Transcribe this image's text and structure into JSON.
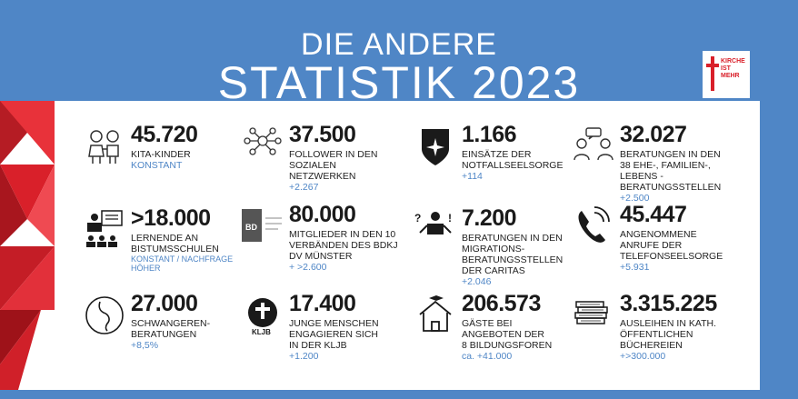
{
  "title": {
    "line1": "DIE ANDERE",
    "line2": "STATISTIK 2023"
  },
  "logo": {
    "line1": "KIRCHE",
    "line2": "IST",
    "line3": "MEHR"
  },
  "colors": {
    "background": "#4f86c6",
    "accent_red": "#d9202a",
    "panel": "#ffffff",
    "highlight": "#4f86c6"
  },
  "stats": [
    {
      "icon": "children-icon",
      "number": "45.720",
      "desc": [
        "KITA-KINDER"
      ],
      "sub": [
        "KONSTANT"
      ]
    },
    {
      "icon": "social-network-icon",
      "number": "37.500",
      "desc": [
        "FOLLOWER IN DEN",
        "SOZIALEN",
        "NETZWERKEN"
      ],
      "sub": [
        "+2.267"
      ]
    },
    {
      "icon": "notfallseelsorge-shield-icon",
      "number": "1.166",
      "desc": [
        "EINSÄTZE DER",
        "NOTFALLSEELSORGE"
      ],
      "sub": [
        "+114"
      ]
    },
    {
      "icon": "counseling-people-icon",
      "number": "32.027",
      "desc": [
        "BERATUNGEN IN DEN",
        "38 EHE-, FAMILIEN-,",
        "LEBENS -",
        "BERATUNGSSTELLEN"
      ],
      "sub": [
        "+2.500"
      ]
    },
    {
      "icon": "classroom-icon",
      "number": ">18.000",
      "desc": [
        "LERNENDE AN",
        "BISTUMSSCHULEN"
      ],
      "sub": [
        "KONSTANT / NACHFRAGE",
        "HÖHER"
      ]
    },
    {
      "icon": "bdkj-logo-icon",
      "number": "80.000",
      "desc": [
        "MITGLIEDER IN DEN 10",
        "VERBÄNDEN DES BDKJ",
        "DV MÜNSTER"
      ],
      "sub": [
        "+ >2.600"
      ]
    },
    {
      "icon": "migration-counseling-icon",
      "number": "7.200",
      "desc": [
        "BERATUNGEN IN DEN",
        "MIGRATIONS-",
        "BERATUNGSSTELLEN",
        "DER CARITAS"
      ],
      "sub": [
        "+2.046"
      ]
    },
    {
      "icon": "telephone-icon",
      "number": "45.447",
      "desc": [
        "ANGENOMMENE",
        "ANRUFE DER",
        "TELEFONSEELSORGE"
      ],
      "sub": [
        "+5.931"
      ]
    },
    {
      "icon": "pregnancy-icon",
      "number": "27.000",
      "desc": [
        "SCHWANGEREN-",
        "BERATUNGEN"
      ],
      "sub": [
        "+8,5%"
      ]
    },
    {
      "icon": "kljb-logo-icon",
      "number": "17.400",
      "desc": [
        "JUNGE MENSCHEN",
        "ENGAGIEREN SICH",
        "IN DER KLJB"
      ],
      "sub": [
        "+1.200"
      ]
    },
    {
      "icon": "education-house-icon",
      "number": "206.573",
      "desc": [
        "GÄSTE BEI",
        "ANGEBOTEN DER",
        "8 BILDUNGSFOREN"
      ],
      "sub": [
        "ca. +41.000"
      ]
    },
    {
      "icon": "books-icon",
      "number": "3.315.225",
      "desc": [
        "AUSLEIHEN IN KATH.",
        "ÖFFENTLICHEN",
        "BÜCHEREIEN"
      ],
      "sub": [
        "+>300.000"
      ]
    }
  ]
}
